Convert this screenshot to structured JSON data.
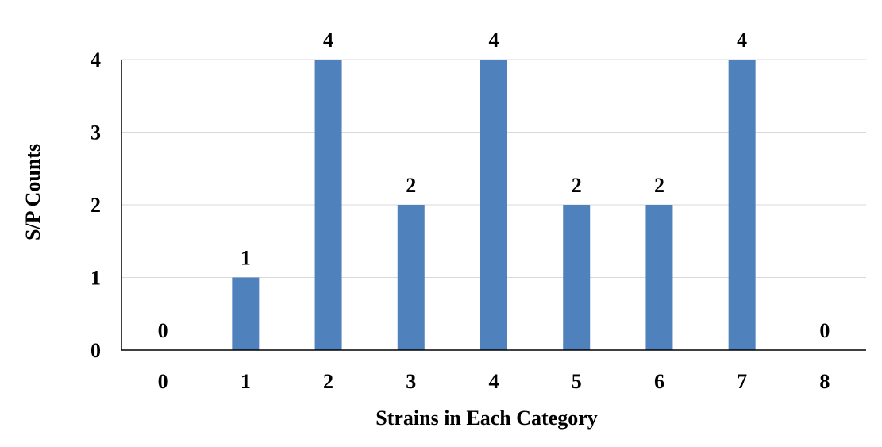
{
  "chart_data": {
    "type": "bar",
    "categories": [
      "0",
      "1",
      "2",
      "3",
      "4",
      "5",
      "6",
      "7",
      "8"
    ],
    "values": [
      0,
      1,
      4,
      2,
      4,
      2,
      2,
      4,
      0
    ],
    "title": "",
    "xlabel": "Strains in Each Category",
    "ylabel": "S/P Counts",
    "ylim": [
      0,
      4
    ],
    "yticks": [
      "0",
      "1",
      "2",
      "3",
      "4"
    ],
    "grid": true,
    "data_labels": true,
    "bar_color": "#4f81bd",
    "gridline_color": "#d9d9d9"
  }
}
